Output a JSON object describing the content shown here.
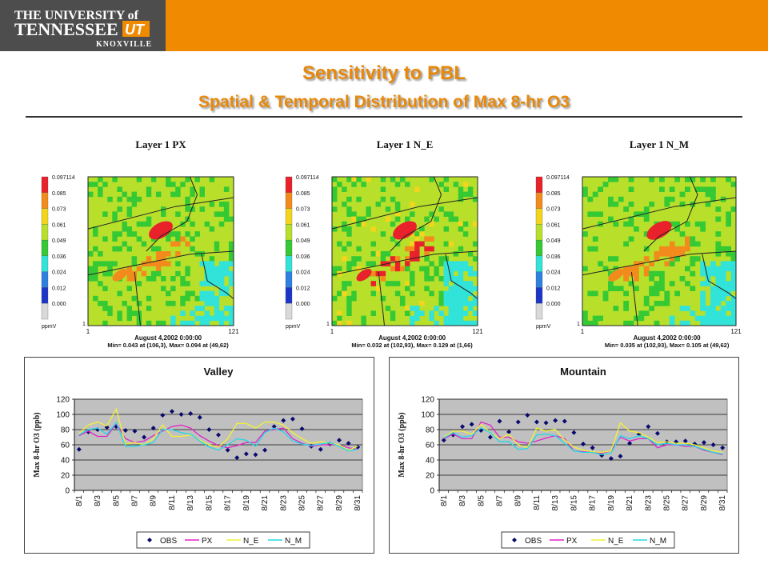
{
  "header": {
    "logo": {
      "line1": "THE UNIVERSITY of",
      "line2": "TENNESSEE",
      "line3": "KNOXVILLE",
      "mark": "UT"
    }
  },
  "title": {
    "main": "Sensitivity to PBL",
    "sub": "Spatial & Temporal Distribution of Max 8-hr O3"
  },
  "maps": [
    {
      "title": "Layer 1  PX",
      "date": "August 4,2002 0:00:00",
      "stats": "Min=   0.043 at (106,3), Max=   0.094 at (49,62)"
    },
    {
      "title": "Layer 1  N_E",
      "date": "August 4,2002 0:00:00",
      "stats": "Min=   0.032 at (102,93), Max=   0.129 at (1,66)"
    },
    {
      "title": "Layer 1 N_M",
      "date": "August 4,2002 0:00:00",
      "stats": "Min=   0.035 at (102,93), Max=   0.105 at (49,62)"
    }
  ],
  "colorbar": {
    "labels": [
      "0.097114",
      "0.085",
      "0.073",
      "0.061",
      "0.049",
      "0.036",
      "0.024",
      "0.012",
      "0.000"
    ],
    "colors": [
      "#e8212b",
      "#f28b1c",
      "#f2d51c",
      "#b8e02a",
      "#35c934",
      "#31e3d8",
      "#2d7fe0",
      "#1c35c9",
      "#d9d9d9"
    ],
    "unit": "ppmV",
    "axis_min": "1",
    "axis_max": "121",
    "y_min": "1"
  },
  "chart_data": [
    {
      "type": "line",
      "title": "Valley",
      "ylabel": "Max 8-hr O3 (ppb)",
      "xlabel": "",
      "ylim": [
        0,
        120
      ],
      "yticks": [
        0,
        20,
        40,
        60,
        80,
        100,
        120
      ],
      "x": [
        "8/1",
        "8/2",
        "8/3",
        "8/4",
        "8/5",
        "8/6",
        "8/7",
        "8/8",
        "8/9",
        "8/10",
        "8/11",
        "8/12",
        "8/13",
        "8/14",
        "8/15",
        "8/16",
        "8/17",
        "8/18",
        "8/19",
        "8/20",
        "8/21",
        "8/22",
        "8/23",
        "8/24",
        "8/25",
        "8/26",
        "8/27",
        "8/28",
        "8/29",
        "8/30",
        "8/31"
      ],
      "xtick_labels": [
        "8/1",
        "8/3",
        "8/5",
        "8/7",
        "8/9",
        "8/11",
        "8/13",
        "8/15",
        "8/17",
        "8/19",
        "8/21",
        "8/23",
        "8/25",
        "8/27",
        "8/29",
        "8/31"
      ],
      "grid": true,
      "legend": "bottom",
      "series": [
        {
          "name": "OBS",
          "color": "#0a0a6e",
          "marker": "diamond",
          "values": [
            54,
            77,
            80,
            83,
            84,
            79,
            78,
            70,
            82,
            99,
            104,
            100,
            101,
            96,
            80,
            73,
            53,
            43,
            48,
            47,
            53,
            84,
            92,
            94,
            81,
            58,
            54,
            61,
            66,
            62,
            57
          ]
        },
        {
          "name": "PX",
          "color": "#e023c9",
          "values": [
            72,
            78,
            71,
            71,
            88,
            68,
            63,
            65,
            72,
            78,
            84,
            86,
            82,
            72,
            65,
            59,
            56,
            59,
            63,
            63,
            78,
            80,
            82,
            68,
            62,
            58,
            60,
            60,
            60,
            56,
            54
          ]
        },
        {
          "name": "N_E",
          "color": "#f2f232",
          "values": [
            75,
            86,
            90,
            85,
            107,
            61,
            63,
            60,
            68,
            86,
            71,
            71,
            73,
            66,
            60,
            57,
            68,
            88,
            88,
            82,
            90,
            90,
            86,
            76,
            68,
            62,
            64,
            62,
            60,
            53,
            58
          ]
        },
        {
          "name": "N_M",
          "color": "#22d8e6",
          "values": [
            73,
            80,
            82,
            74,
            89,
            58,
            58,
            60,
            63,
            80,
            80,
            76,
            74,
            65,
            57,
            53,
            60,
            68,
            66,
            58,
            76,
            82,
            77,
            65,
            61,
            59,
            61,
            63,
            58,
            52,
            54
          ]
        }
      ]
    },
    {
      "type": "line",
      "title": "Mountain",
      "ylabel": "Max 8-hr O3 (ppb)",
      "xlabel": "",
      "ylim": [
        0,
        120
      ],
      "yticks": [
        0,
        20,
        40,
        60,
        80,
        100,
        120
      ],
      "x": [
        "8/1",
        "8/2",
        "8/3",
        "8/4",
        "8/5",
        "8/6",
        "8/7",
        "8/8",
        "8/9",
        "8/10",
        "8/11",
        "8/12",
        "8/13",
        "8/14",
        "8/15",
        "8/16",
        "8/17",
        "8/18",
        "8/19",
        "8/20",
        "8/21",
        "8/22",
        "8/23",
        "8/24",
        "8/25",
        "8/26",
        "8/27",
        "8/28",
        "8/29",
        "8/30",
        "8/31"
      ],
      "xtick_labels": [
        "8/1",
        "8/3",
        "8/5",
        "8/7",
        "8/9",
        "8/11",
        "8/13",
        "8/15",
        "8/17",
        "8/19",
        "8/21",
        "8/23",
        "8/25",
        "8/27",
        "8/29",
        "8/31"
      ],
      "grid": true,
      "legend": "bottom",
      "series": [
        {
          "name": "OBS",
          "color": "#0a0a6e",
          "marker": "diamond",
          "values": [
            66,
            73,
            84,
            87,
            79,
            70,
            91,
            77,
            90,
            99,
            90,
            89,
            92,
            91,
            76,
            61,
            56,
            46,
            42,
            45,
            62,
            74,
            84,
            75,
            64,
            64,
            65,
            61,
            63,
            60,
            56
          ]
        },
        {
          "name": "PX",
          "color": "#e023c9",
          "values": [
            68,
            74,
            68,
            68,
            90,
            86,
            70,
            70,
            64,
            62,
            65,
            69,
            72,
            68,
            52,
            51,
            50,
            49,
            52,
            70,
            65,
            68,
            68,
            56,
            60,
            60,
            58,
            58,
            53,
            50,
            47
          ]
        },
        {
          "name": "N_E",
          "color": "#f2f232",
          "values": [
            70,
            78,
            78,
            74,
            87,
            76,
            68,
            74,
            60,
            56,
            82,
            78,
            80,
            66,
            57,
            53,
            51,
            50,
            52,
            89,
            78,
            76,
            70,
            63,
            64,
            62,
            62,
            60,
            56,
            52,
            50
          ]
        },
        {
          "name": "N_M",
          "color": "#22d8e6",
          "values": [
            69,
            76,
            70,
            72,
            82,
            76,
            64,
            64,
            54,
            55,
            73,
            74,
            72,
            62,
            52,
            50,
            50,
            47,
            49,
            72,
            68,
            72,
            68,
            60,
            62,
            60,
            60,
            58,
            54,
            50,
            48
          ]
        }
      ]
    }
  ]
}
